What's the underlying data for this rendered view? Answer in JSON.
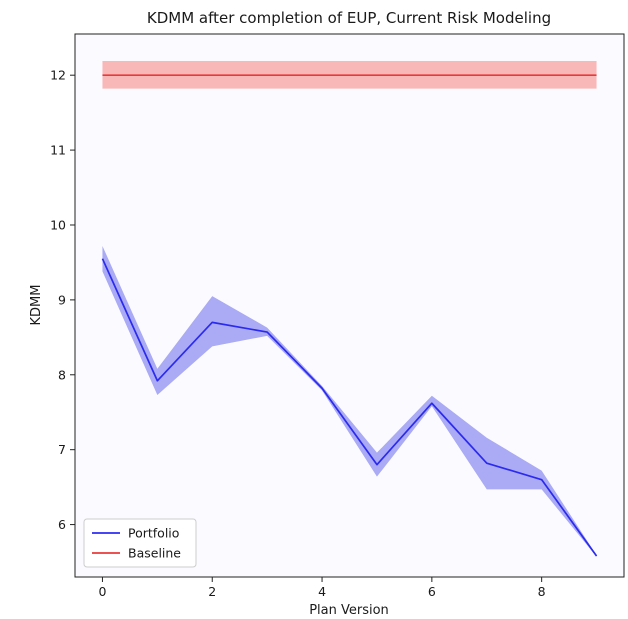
{
  "chart_data": {
    "type": "line",
    "title": "KDMM after completion of EUP, Current Risk Modeling",
    "xlabel": "Plan Version",
    "ylabel": "KDMM",
    "xlim": [
      -0.5,
      9.5
    ],
    "ylim": [
      5.3,
      12.55
    ],
    "xticks": [
      0,
      2,
      4,
      6,
      8
    ],
    "yticks": [
      6,
      7,
      8,
      9,
      10,
      11,
      12
    ],
    "grid": false,
    "legend_position": "lower-left",
    "x": [
      0,
      1,
      2,
      3,
      4,
      5,
      6,
      7,
      8,
      9
    ],
    "series": [
      {
        "name": "Portfolio",
        "color": "#2b2bf0",
        "band_color": "#aaaaf5",
        "values": [
          9.55,
          7.92,
          8.7,
          8.57,
          7.82,
          6.8,
          7.62,
          6.82,
          6.6,
          5.58
        ],
        "lower": [
          9.38,
          7.73,
          8.38,
          8.52,
          7.79,
          6.64,
          7.58,
          6.47,
          6.47,
          5.57
        ],
        "upper": [
          9.72,
          8.08,
          9.05,
          8.63,
          7.85,
          6.96,
          7.72,
          7.16,
          6.72,
          5.59
        ]
      },
      {
        "name": "Baseline",
        "color": "#e83a3a",
        "band_color": "#f9b8b8",
        "values": [
          12.0,
          12.0,
          12.0,
          12.0,
          12.0,
          12.0,
          12.0,
          12.0,
          12.0,
          12.0
        ],
        "lower": [
          11.82,
          11.82,
          11.82,
          11.82,
          11.82,
          11.82,
          11.82,
          11.82,
          11.82,
          11.82
        ],
        "upper": [
          12.19,
          12.19,
          12.19,
          12.19,
          12.19,
          12.19,
          12.19,
          12.19,
          12.19,
          12.19
        ]
      }
    ]
  }
}
